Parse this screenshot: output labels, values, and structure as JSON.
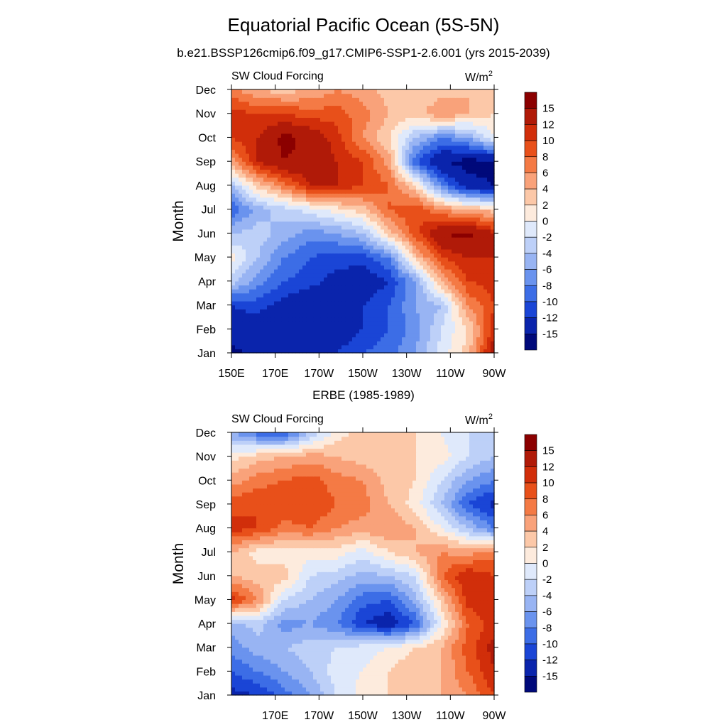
{
  "title": "Equatorial Pacific Ocean (5S-5N)",
  "subtitle": "b.e21.BSSP126cmip6.f09_g17.CMIP6-SSP1-2.6.001 (yrs 2015-2039)",
  "panel2_title": "ERBE (1985-1989)",
  "colorbar": {
    "labels": [
      "15",
      "12",
      "10",
      "8",
      "6",
      "4",
      "2",
      "0",
      "-2",
      "-4",
      "-6",
      "-8",
      "-10",
      "-12",
      "-15"
    ],
    "colors": [
      "#8b0000",
      "#b01a08",
      "#d12e0a",
      "#e8501a",
      "#f47a45",
      "#f9a27a",
      "#fcc8a8",
      "#fdebdd",
      "#dfe9fb",
      "#bdd0f8",
      "#98b4f3",
      "#6a93ee",
      "#3c6de6",
      "#1a45d6",
      "#0a24ac",
      "#00097a"
    ]
  },
  "chart_data": [
    {
      "type": "heatmap",
      "panel_title": "",
      "left_label": "SW Cloud Forcing",
      "units": "W/m2",
      "units_base": "W/m",
      "units_sup": "2",
      "xlabel": "",
      "ylabel": "Month",
      "xlim_deg_east": [
        150,
        270
      ],
      "x_tick_labels": [
        "150E",
        "170E",
        "170W",
        "150W",
        "130W",
        "110W",
        "90W"
      ],
      "x_tick_values_deg_east": [
        150,
        170,
        190,
        210,
        230,
        250,
        270
      ],
      "y_tick_labels": [
        "Jan",
        "Feb",
        "Mar",
        "Apr",
        "May",
        "Jun",
        "Jul",
        "Aug",
        "Sep",
        "Oct",
        "Nov",
        "Dec"
      ],
      "z_levels": [
        -15,
        -12,
        -10,
        -8,
        -6,
        -4,
        -2,
        0,
        2,
        4,
        6,
        8,
        10,
        12,
        15
      ],
      "grid_x_deg_east": [
        150,
        162,
        174,
        186,
        198,
        210,
        222,
        234,
        246,
        258,
        270
      ],
      "grid_y_months": [
        "Jan",
        "Feb",
        "Mar",
        "Apr",
        "May",
        "Jun",
        "Jul",
        "Aug",
        "Sep",
        "Oct",
        "Nov",
        "Dec"
      ],
      "values": [
        [
          -16,
          -14,
          -12,
          -12,
          -12,
          -10,
          -9,
          -6,
          -1,
          3,
          14
        ],
        [
          -13,
          -14,
          -15,
          -15,
          -14,
          -12,
          -10,
          -7,
          -2,
          2,
          11
        ],
        [
          -12,
          -11,
          -13,
          -15,
          -14,
          -12,
          -10,
          -6,
          -4,
          6,
          10
        ],
        [
          -3,
          -7,
          -10,
          -11,
          -13,
          -14,
          -12,
          -6,
          4,
          10,
          11
        ],
        [
          1,
          -4,
          -8,
          -10,
          -11,
          -11,
          -8,
          3,
          10,
          12,
          12
        ],
        [
          -4,
          -3,
          -5,
          -7,
          -6,
          -4,
          3,
          9,
          15,
          16,
          12
        ],
        [
          -10,
          -5,
          -3,
          -1,
          1,
          3,
          8,
          10,
          6,
          4,
          3
        ],
        [
          -4,
          3,
          7,
          12,
          12,
          10,
          8,
          2,
          -8,
          -14,
          -15
        ],
        [
          5,
          12,
          15,
          14,
          12,
          10,
          5,
          -10,
          -15,
          -16,
          -16
        ],
        [
          10,
          12,
          16,
          14,
          11,
          6,
          2,
          -4,
          -8,
          -6,
          0
        ],
        [
          11,
          10,
          10,
          9,
          9,
          7,
          4,
          3,
          6,
          4,
          2
        ],
        [
          7,
          4,
          3,
          4,
          6,
          5,
          3,
          2,
          3,
          4,
          2
        ]
      ]
    },
    {
      "type": "heatmap",
      "panel_title": "ERBE (1985-1989)",
      "left_label": "SW Cloud Forcing",
      "units": "W/m2",
      "units_base": "W/m",
      "units_sup": "2",
      "xlabel": "",
      "ylabel": "Month",
      "xlim_deg_east": [
        150,
        270
      ],
      "x_tick_labels": [
        "170E",
        "170W",
        "150W",
        "130W",
        "110W",
        "90W"
      ],
      "x_tick_values_deg_east": [
        170,
        190,
        210,
        230,
        250,
        270
      ],
      "y_tick_labels": [
        "Jan",
        "Feb",
        "Mar",
        "Apr",
        "May",
        "Jun",
        "Jul",
        "Aug",
        "Sep",
        "Oct",
        "Nov",
        "Dec"
      ],
      "z_levels": [
        -15,
        -12,
        -10,
        -8,
        -6,
        -4,
        -2,
        0,
        2,
        4,
        6,
        8,
        10,
        12,
        15
      ],
      "grid_x_deg_east": [
        150,
        162,
        174,
        186,
        198,
        210,
        222,
        234,
        246,
        258,
        270
      ],
      "grid_y_months": [
        "Jan",
        "Feb",
        "Mar",
        "Apr",
        "May",
        "Jun",
        "Jul",
        "Aug",
        "Sep",
        "Oct",
        "Nov",
        "Dec"
      ],
      "values": [
        [
          -13,
          -12,
          -9,
          -6,
          -2,
          1,
          2,
          3,
          4,
          6,
          10
        ],
        [
          -10,
          -8,
          -6,
          -4,
          -1,
          0,
          2,
          4,
          4,
          8,
          12
        ],
        [
          -7,
          -5,
          -4,
          -3,
          -2,
          -1,
          0,
          2,
          4,
          9,
          13
        ],
        [
          -5,
          -3,
          -7,
          -6,
          -8,
          -12,
          -14,
          -10,
          0,
          8,
          11
        ],
        [
          11,
          6,
          -2,
          -4,
          -6,
          -9,
          -10,
          -5,
          3,
          11,
          12
        ],
        [
          4,
          3,
          3,
          -2,
          -3,
          -5,
          -4,
          -2,
          8,
          12,
          10
        ],
        [
          4,
          1,
          1,
          1,
          1,
          -1,
          2,
          4,
          6,
          5,
          7
        ],
        [
          11,
          10,
          7,
          8,
          6,
          5,
          6,
          4,
          0,
          -4,
          -8
        ],
        [
          9,
          10,
          10,
          10,
          8,
          7,
          4,
          1,
          -4,
          -10,
          -13
        ],
        [
          5,
          7,
          8,
          9,
          7,
          6,
          3,
          2,
          -2,
          -6,
          -8
        ],
        [
          1,
          3,
          4,
          5,
          4,
          3,
          3,
          2,
          1,
          -2,
          -4
        ],
        [
          -6,
          -9,
          -10,
          -4,
          1,
          3,
          3,
          2,
          0,
          -2,
          -2
        ]
      ]
    }
  ]
}
